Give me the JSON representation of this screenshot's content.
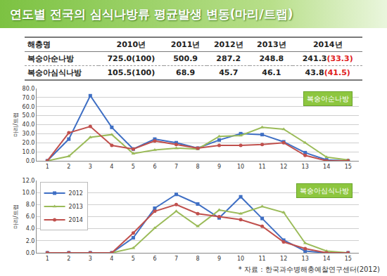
{
  "title": "연도별 전국의 심식나방류 평균발생 변동(마리/트랩)",
  "table": {
    "header": [
      "해충명",
      "2010년",
      "2011년",
      "2012년",
      "2013년",
      "2014년"
    ],
    "rows": [
      [
        "복숭아순나방",
        "725.0(100)",
        "500.9",
        "287.2",
        "248.8",
        {
          "text": "241.3",
          "highlight": "(33.3)"
        }
      ],
      [
        "복숭아심식나방",
        "105.5(100)",
        "68.9",
        "45.7",
        "46.1",
        {
          "text": "43.8",
          "highlight": "(41.5)"
        }
      ]
    ]
  },
  "source": "* 자료 : 한국과수병해충예찰연구센터(2012)",
  "chart_data": [
    {
      "type": "line",
      "title": "복숭아순나방",
      "y_label": "마리/트랩",
      "x": [
        1,
        2,
        3,
        4,
        5,
        6,
        7,
        8,
        9,
        10,
        11,
        12,
        13,
        14,
        15
      ],
      "xlim": [
        0.5,
        15.5
      ],
      "xticks": [
        1,
        2,
        3,
        4,
        5,
        6,
        7,
        8,
        9,
        10,
        11,
        12,
        13,
        14,
        15
      ],
      "ylim": [
        0,
        80
      ],
      "yticks": [
        {
          "value": 0,
          "label": "0.0"
        },
        {
          "value": 10,
          "label": "10.0"
        },
        {
          "value": 20,
          "label": "20.0"
        },
        {
          "value": 30,
          "label": "30.0"
        },
        {
          "value": 40,
          "label": "40.0"
        },
        {
          "value": 50,
          "label": "50.0"
        },
        {
          "value": 60,
          "label": "60.0"
        },
        {
          "value": 70,
          "label": "70.0"
        },
        {
          "value": 80,
          "label": "80.0"
        }
      ],
      "grid": true,
      "series": [
        {
          "name": "2012",
          "color": "#3f6fc4",
          "marker": "square",
          "values": [
            0,
            24,
            72,
            37,
            13,
            24,
            20,
            14,
            23,
            30,
            29,
            21,
            9,
            1,
            0
          ]
        },
        {
          "name": "2013",
          "color": "#9bbb59",
          "marker": "triangle",
          "values": [
            0,
            5,
            26,
            29,
            8,
            12,
            14,
            13,
            27,
            28,
            37,
            35,
            20,
            4,
            1
          ]
        },
        {
          "name": "2014",
          "color": "#c0504d",
          "marker": "circle",
          "values": [
            0,
            31,
            38,
            17,
            13,
            22,
            18,
            14,
            17,
            17,
            18,
            20,
            6,
            0,
            0
          ]
        }
      ]
    },
    {
      "type": "line",
      "title": "복숭아심식나방",
      "y_label": "마리/트랩",
      "x": [
        1,
        2,
        3,
        4,
        5,
        6,
        7,
        8,
        9,
        10,
        11,
        12,
        13,
        14,
        15
      ],
      "xlim": [
        0.5,
        15.5
      ],
      "xticks": [
        1,
        2,
        3,
        4,
        5,
        6,
        7,
        8,
        9,
        10,
        11,
        12,
        13,
        14,
        15
      ],
      "ylim": [
        0,
        12
      ],
      "yticks": [
        {
          "value": 0,
          "label": "0.0"
        },
        {
          "value": 2,
          "label": "2.0"
        },
        {
          "value": 4,
          "label": "4.0"
        },
        {
          "value": 6,
          "label": "6.0"
        },
        {
          "value": 8,
          "label": "8.0"
        },
        {
          "value": 10,
          "label": "10.0"
        },
        {
          "value": 12,
          "label": "12.0"
        }
      ],
      "grid": true,
      "legend": "upper left",
      "series": [
        {
          "name": "2012",
          "color": "#3f6fc4",
          "marker": "square",
          "values": [
            0,
            0,
            0,
            0,
            2.5,
            7.4,
            9.7,
            8.1,
            5.8,
            9.3,
            5.7,
            2.1,
            0.3,
            0,
            0
          ]
        },
        {
          "name": "2013",
          "color": "#9bbb59",
          "marker": "triangle",
          "values": [
            0,
            0,
            0,
            0,
            0.8,
            4.1,
            6.9,
            4.4,
            7.1,
            6.5,
            7.7,
            6.7,
            1.6,
            0.3,
            0
          ]
        },
        {
          "name": "2014",
          "color": "#c0504d",
          "marker": "circle",
          "values": [
            0,
            0,
            0,
            0,
            3.3,
            6.9,
            8.0,
            6.5,
            6.0,
            5.5,
            4.4,
            1.8,
            0.7,
            0,
            0
          ]
        }
      ]
    }
  ]
}
